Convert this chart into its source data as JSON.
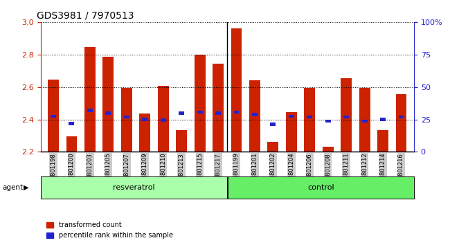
{
  "title": "GDS3981 / 7970513",
  "categories": [
    "GSM801198",
    "GSM801200",
    "GSM801203",
    "GSM801205",
    "GSM801207",
    "GSM801209",
    "GSM801210",
    "GSM801213",
    "GSM801215",
    "GSM801217",
    "GSM801199",
    "GSM801201",
    "GSM801202",
    "GSM801204",
    "GSM801206",
    "GSM801208",
    "GSM801211",
    "GSM801212",
    "GSM801214",
    "GSM801216"
  ],
  "red_values": [
    2.645,
    2.295,
    2.845,
    2.785,
    2.595,
    2.435,
    2.605,
    2.335,
    2.8,
    2.745,
    2.96,
    2.64,
    2.26,
    2.445,
    2.595,
    2.23,
    2.655,
    2.595,
    2.335,
    2.555
  ],
  "blue_values": [
    2.42,
    2.375,
    2.455,
    2.44,
    2.415,
    2.4,
    2.395,
    2.44,
    2.445,
    2.44,
    2.445,
    2.43,
    2.37,
    2.42,
    2.415,
    2.39,
    2.415,
    2.39,
    2.4,
    2.415
  ],
  "ylim": [
    2.2,
    3.0
  ],
  "yticks": [
    2.2,
    2.4,
    2.6,
    2.8,
    3.0
  ],
  "right_yticks": [
    0,
    25,
    50,
    75,
    100
  ],
  "right_ylabels": [
    "0",
    "25",
    "50",
    "75",
    "100%"
  ],
  "resveratrol_count": 10,
  "control_count": 10,
  "bar_color": "#cc2200",
  "blue_color": "#2222cc",
  "agent_label": "agent",
  "resveratrol_label": "resveratrol",
  "control_label": "control",
  "legend_red": "transformed count",
  "legend_blue": "percentile rank within the sample",
  "bar_width": 0.6,
  "group_bg_resveratrol": "#aaffaa",
  "group_bg_control": "#66ee66",
  "xticklabel_bg": "#cccccc"
}
